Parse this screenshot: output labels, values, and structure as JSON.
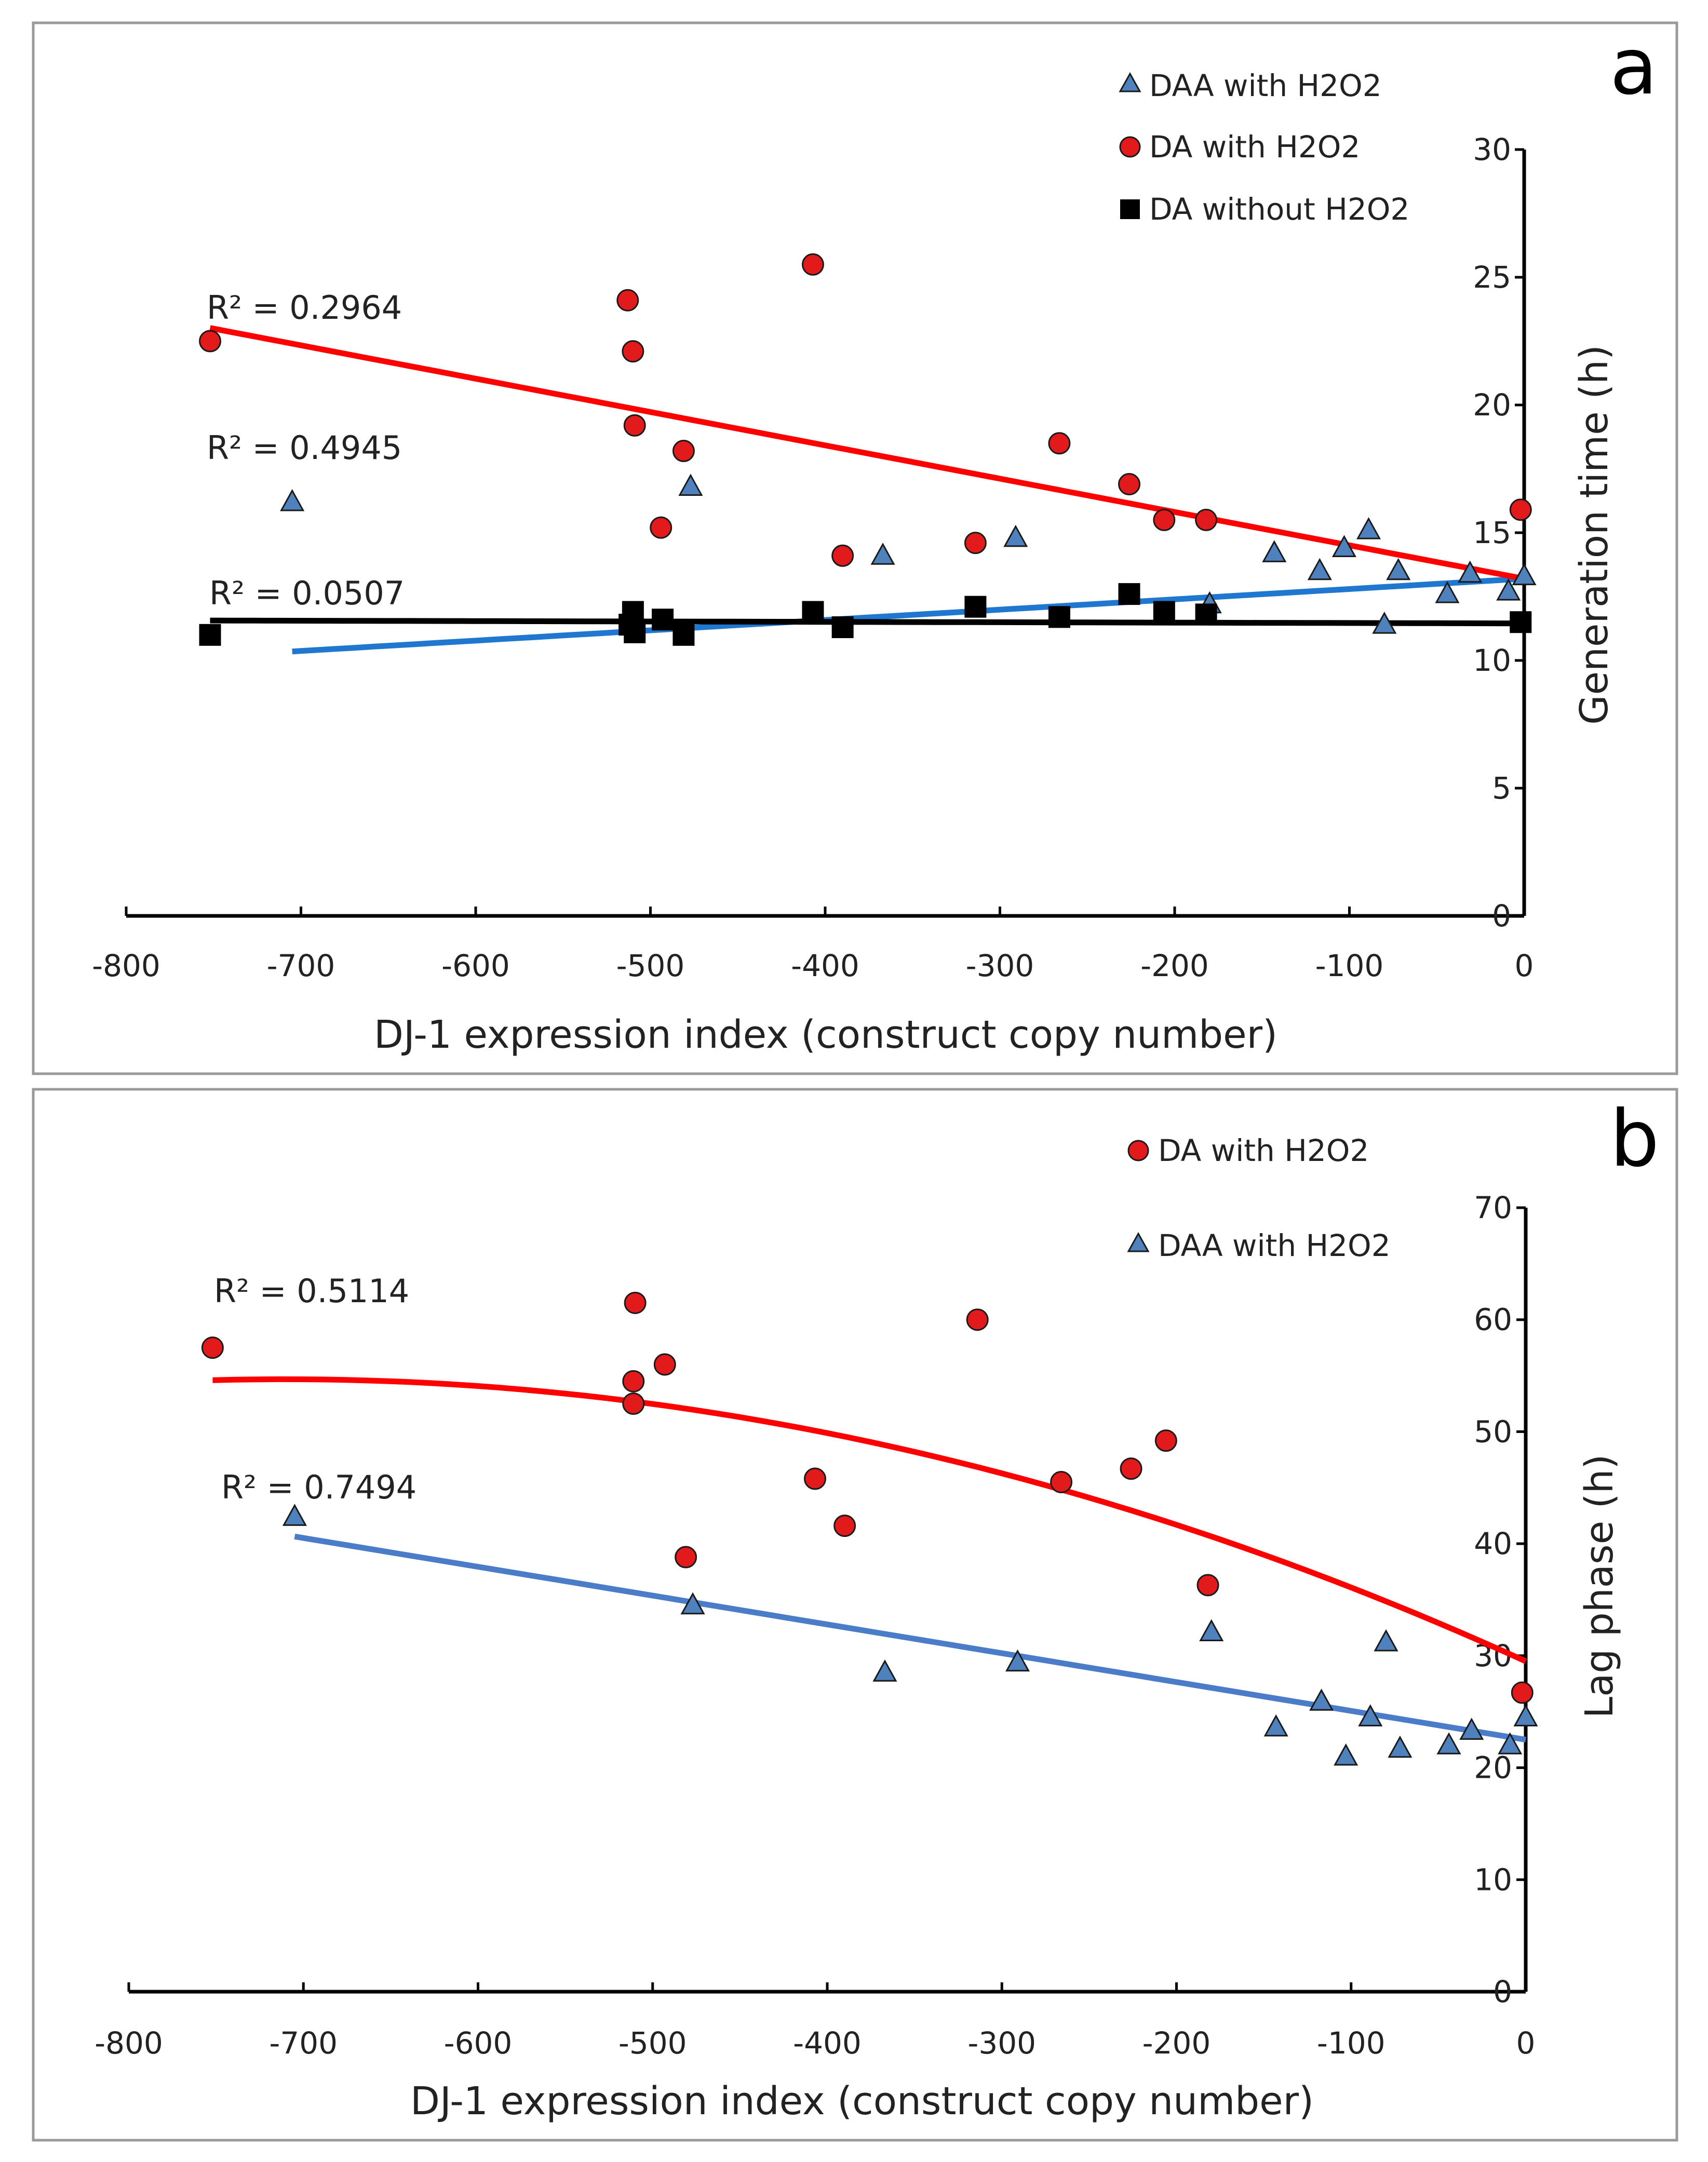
{
  "chart_data": [
    {
      "panel": "a",
      "type": "scatter",
      "xlabel": "DJ-1 expression index (construct copy number)",
      "ylabel": "Generation time (h)",
      "xlim": [
        -800,
        0
      ],
      "ylim": [
        0,
        30
      ],
      "x_ticks": [
        -800,
        -700,
        -600,
        -500,
        -400,
        -300,
        -200,
        -100,
        0
      ],
      "y_ticks": [
        0,
        5,
        10,
        15,
        20,
        25,
        30
      ],
      "series": [
        {
          "key": "daa",
          "name": "DAA with H2O2",
          "marker": "triangle",
          "color": "#4f81bd",
          "trend_color": "#1f77d0",
          "r2_label": "R² = 0.4945",
          "trend": {
            "type": "linear",
            "slope": 0.00404,
            "intercept": 13.2,
            "x_from": -705,
            "x_to": 0
          },
          "points": [
            [
              -705,
              16.2
            ],
            [
              -477,
              16.8
            ],
            [
              -367,
              14.1
            ],
            [
              -291,
              14.8
            ],
            [
              -180,
              12.2
            ],
            [
              -143,
              14.2
            ],
            [
              -117,
              13.5
            ],
            [
              -103,
              14.4
            ],
            [
              -89,
              15.1
            ],
            [
              -80,
              11.4
            ],
            [
              -72,
              13.5
            ],
            [
              -44,
              12.6
            ],
            [
              -31,
              13.4
            ],
            [
              -9,
              12.7
            ],
            [
              0,
              13.3
            ]
          ]
        },
        {
          "key": "da",
          "name": "DA with H2O2",
          "marker": "circle",
          "color": "#e31a1c",
          "trend_color": "#ff0000",
          "r2_label": "R² = 0.2964",
          "trend": {
            "type": "linear",
            "slope": -0.01305,
            "intercept": 13.2,
            "x_from": -752,
            "x_to": 0
          },
          "points": [
            [
              -752,
              22.5
            ],
            [
              -513,
              24.1
            ],
            [
              -510,
              22.1
            ],
            [
              -509,
              19.2
            ],
            [
              -494,
              15.2
            ],
            [
              -481,
              18.2
            ],
            [
              -407,
              25.5
            ],
            [
              -390,
              14.1
            ],
            [
              -314,
              14.6
            ],
            [
              -266,
              18.5
            ],
            [
              -226,
              16.9
            ],
            [
              -206,
              15.5
            ],
            [
              -182,
              15.5
            ],
            [
              -2,
              15.9
            ]
          ]
        },
        {
          "key": "dawo",
          "name": "DA without H2O2",
          "marker": "square",
          "color": "#000000",
          "trend_color": "#000000",
          "r2_label": "R² = 0.0507",
          "trend": {
            "type": "linear",
            "slope": -0.00015,
            "intercept": 11.45,
            "x_from": -752,
            "x_to": 0
          },
          "points": [
            [
              -752,
              11.0
            ],
            [
              -512,
              11.4
            ],
            [
              -510,
              11.9
            ],
            [
              -509,
              11.1
            ],
            [
              -493,
              11.6
            ],
            [
              -481,
              11.0
            ],
            [
              -407,
              11.9
            ],
            [
              -390,
              11.3
            ],
            [
              -314,
              12.1
            ],
            [
              -266,
              11.7
            ],
            [
              -226,
              12.6
            ],
            [
              -206,
              11.9
            ],
            [
              -182,
              11.8
            ],
            [
              -2,
              11.5
            ]
          ]
        }
      ]
    },
    {
      "panel": "b",
      "type": "scatter",
      "xlabel": "DJ-1 expression index (construct copy number)",
      "ylabel": "Lag phase (h)",
      "xlim": [
        -800,
        0
      ],
      "ylim": [
        0,
        70
      ],
      "x_ticks": [
        -800,
        -700,
        -600,
        -500,
        -400,
        -300,
        -200,
        -100,
        0
      ],
      "y_ticks": [
        0,
        10,
        20,
        30,
        40,
        50,
        60,
        70
      ],
      "series": [
        {
          "key": "da",
          "name": "DA with H2O2",
          "marker": "circle",
          "color": "#e31a1c",
          "trend_color": "#ff0000",
          "r2_label": "R² = 0.5114",
          "trend": {
            "type": "poly2",
            "a": -4.99e-05,
            "b": -0.0709,
            "c": 29.5,
            "x_from": -752,
            "x_to": 0
          },
          "points": [
            [
              -752,
              57.5
            ],
            [
              -510,
              61.5
            ],
            [
              -511,
              54.5
            ],
            [
              -511,
              52.5
            ],
            [
              -493,
              56.0
            ],
            [
              -481,
              38.8
            ],
            [
              -407,
              45.8
            ],
            [
              -390,
              41.6
            ],
            [
              -314,
              60.0
            ],
            [
              -266,
              45.5
            ],
            [
              -226,
              46.7
            ],
            [
              -206,
              49.2
            ],
            [
              -182,
              36.3
            ],
            [
              -2,
              26.7
            ]
          ]
        },
        {
          "key": "daa",
          "name": "DAA with H2O2",
          "marker": "triangle",
          "color": "#4f81bd",
          "trend_color": "#4a7cc9",
          "r2_label": "R² = 0.7494",
          "trend": {
            "type": "linear",
            "slope": -0.02573,
            "intercept": 22.5,
            "x_from": -705,
            "x_to": 0
          },
          "points": [
            [
              -705,
              42.4
            ],
            [
              -477,
              34.5
            ],
            [
              -367,
              28.5
            ],
            [
              -291,
              29.4
            ],
            [
              -180,
              32.1
            ],
            [
              -143,
              23.6
            ],
            [
              -117,
              25.9
            ],
            [
              -103,
              21.0
            ],
            [
              -89,
              24.5
            ],
            [
              -80,
              31.2
            ],
            [
              -72,
              21.7
            ],
            [
              -44,
              22.0
            ],
            [
              -31,
              23.3
            ],
            [
              -9,
              22.0
            ],
            [
              0,
              24.5
            ]
          ]
        }
      ]
    }
  ]
}
